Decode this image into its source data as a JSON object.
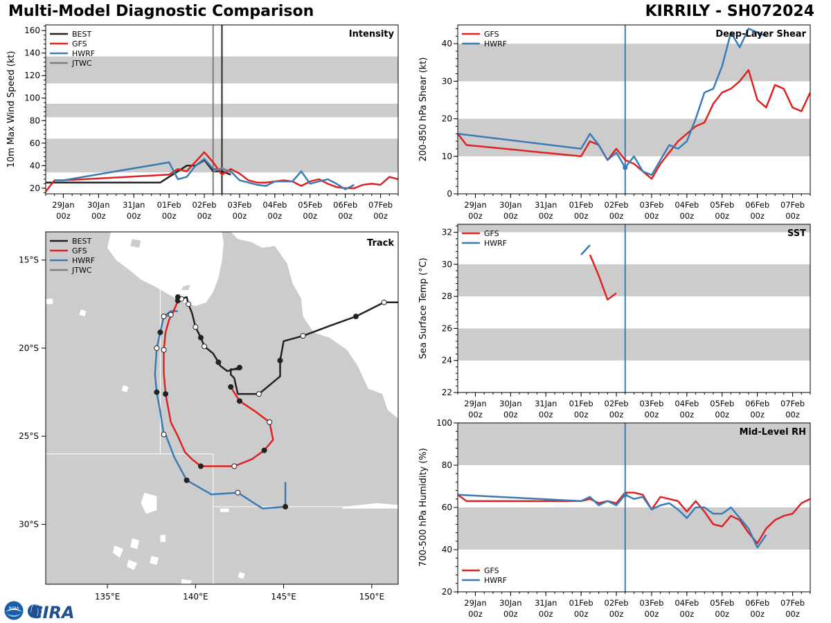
{
  "header": {
    "left_title": "Multi-Model Diagnostic Comparison",
    "right_title": "KIRRILY - SH072024"
  },
  "logo": {
    "text": "CIRA",
    "noaa_text": "NOAA"
  },
  "colors": {
    "BEST": "#222222",
    "GFS": "#dd2222",
    "HWRF": "#3a7bb5",
    "JTWC": "#808080",
    "band": "#cccccc",
    "land": "#cccccc"
  },
  "time_ticks": [
    "29Jan 00z",
    "30Jan 00z",
    "31Jan 00z",
    "01Feb 00z",
    "02Feb 00z",
    "03Feb 00z",
    "04Feb 00z",
    "05Feb 00z",
    "06Feb 00z",
    "07Feb 00z"
  ],
  "chart_data": [
    {
      "id": "intensity",
      "type": "line",
      "title": "Intensity",
      "ylabel": "10m Max Wind Speed (kt)",
      "xlim": [
        -0.5,
        9.5
      ],
      "ylim": [
        15,
        165
      ],
      "yticks": [
        20,
        40,
        60,
        80,
        100,
        120,
        140,
        160
      ],
      "bands": [
        [
          34,
          64
        ],
        [
          83,
          95
        ],
        [
          113,
          137
        ]
      ],
      "vlines": [
        {
          "x": 4.25,
          "color": "#808080"
        },
        {
          "x": 4.5,
          "color": "#222222"
        }
      ],
      "legend": [
        "BEST",
        "GFS",
        "HWRF",
        "JTWC"
      ],
      "series": [
        {
          "name": "BEST",
          "x": [
            -0.5,
            2.75,
            3.0,
            3.25,
            3.5,
            3.75,
            4.0,
            4.25,
            4.5,
            4.75
          ],
          "y": [
            25,
            25,
            30,
            35,
            40,
            40,
            45,
            35,
            35,
            32
          ]
        },
        {
          "name": "GFS",
          "x": [
            -0.5,
            -0.25,
            0.0,
            3.0,
            3.25,
            3.5,
            4.0,
            4.25,
            4.5,
            4.75,
            5.0,
            5.25,
            5.5,
            5.75,
            6.0,
            6.25,
            6.5,
            6.75,
            7.0,
            7.25,
            7.5,
            7.75,
            8.0,
            8.25,
            8.5,
            8.75,
            9.0,
            9.25,
            9.5
          ],
          "y": [
            17,
            27,
            27,
            32,
            37,
            35,
            52,
            43,
            32,
            37,
            33,
            27,
            25,
            25,
            26,
            27,
            26,
            22,
            26,
            28,
            24,
            21,
            20,
            20,
            23,
            24,
            23,
            30,
            28
          ]
        },
        {
          "name": "HWRF",
          "x": [
            -0.25,
            0.0,
            3.0,
            3.25,
            3.5,
            3.75,
            4.0,
            4.25,
            4.5,
            4.75,
            5.0,
            5.25,
            5.5,
            5.75,
            6.0,
            6.25,
            6.5,
            6.75,
            7.0,
            7.25,
            7.5,
            7.75,
            8.0,
            8.25
          ],
          "y": [
            27,
            27,
            43,
            28,
            30,
            40,
            46,
            37,
            37,
            35,
            27,
            25,
            23,
            22,
            26,
            26,
            26,
            35,
            24,
            26,
            28,
            24,
            19,
            23
          ]
        },
        {
          "name": "JTWC",
          "x": [
            4.25,
            4.5,
            4.75
          ],
          "y": [
            35,
            38,
            34
          ]
        }
      ]
    },
    {
      "id": "shear",
      "type": "line",
      "title": "Deep-Layer Shear",
      "ylabel": "200-850 hPa Shear (kt)",
      "xlim": [
        -0.5,
        9.5
      ],
      "ylim": [
        0,
        45
      ],
      "yticks": [
        0,
        10,
        20,
        30,
        40
      ],
      "bands": [
        [
          10,
          20
        ],
        [
          30,
          40
        ]
      ],
      "vlines": [
        {
          "x": 4.25,
          "color": "#3a7bb5"
        }
      ],
      "legend": [
        "GFS",
        "HWRF"
      ],
      "series": [
        {
          "name": "GFS",
          "x": [
            -0.5,
            -0.25,
            3.0,
            3.25,
            3.5,
            3.75,
            4.0,
            4.25,
            4.5,
            4.75,
            5.0,
            5.25,
            5.5,
            5.75,
            6.0,
            6.25,
            6.5,
            6.75,
            7.0,
            7.25,
            7.5,
            7.75,
            8.0,
            8.25,
            8.5,
            8.75,
            9.0,
            9.25,
            9.5
          ],
          "y": [
            16,
            13,
            10,
            14,
            13,
            9,
            12,
            9,
            8,
            6,
            4,
            8,
            11,
            14,
            16,
            18,
            19,
            24,
            27,
            28,
            30,
            33,
            25,
            23,
            29,
            28,
            23,
            22,
            27
          ]
        },
        {
          "name": "HWRF",
          "x": [
            -0.5,
            3.0,
            3.25,
            3.5,
            3.75,
            4.0,
            4.25,
            4.5,
            4.75,
            5.0,
            5.25,
            5.5,
            5.75,
            6.0,
            6.25,
            6.5,
            6.75,
            7.0,
            7.25,
            7.5,
            7.75,
            8.0,
            8.25
          ],
          "y": [
            16,
            12,
            16,
            13,
            9,
            11,
            7,
            10,
            6,
            5,
            9,
            13,
            12,
            14,
            20,
            27,
            28,
            34,
            43,
            39,
            44,
            43,
            42
          ]
        }
      ]
    },
    {
      "id": "sst",
      "type": "line",
      "title": "SST",
      "ylabel": "Sea Surface Temp (°C)",
      "xlim": [
        -0.5,
        9.5
      ],
      "ylim": [
        22,
        32.5
      ],
      "yticks": [
        22,
        24,
        26,
        28,
        30,
        32
      ],
      "bands": [
        [
          24,
          26
        ],
        [
          28,
          30
        ],
        [
          32,
          33
        ]
      ],
      "vlines": [
        {
          "x": 4.25,
          "color": "#3a7bb5"
        }
      ],
      "legend": [
        "GFS",
        "HWRF"
      ],
      "series": [
        {
          "name": "GFS",
          "x": [
            3.25,
            3.5,
            3.75,
            4.0
          ],
          "y": [
            30.6,
            29.3,
            27.8,
            28.2
          ]
        },
        {
          "name": "HWRF",
          "x": [
            3.0,
            3.25
          ],
          "y": [
            30.6,
            31.2
          ]
        }
      ]
    },
    {
      "id": "rh",
      "type": "line",
      "title": "Mid-Level RH",
      "ylabel": "700-500 hPa Humidity (%)",
      "xlim": [
        -0.5,
        9.5
      ],
      "ylim": [
        20,
        100
      ],
      "yticks": [
        20,
        40,
        60,
        80,
        100
      ],
      "bands": [
        [
          40,
          60
        ],
        [
          80,
          100
        ]
      ],
      "vlines": [
        {
          "x": 4.25,
          "color": "#3a7bb5"
        }
      ],
      "legend": [
        "GFS",
        "HWRF"
      ],
      "series": [
        {
          "name": "GFS",
          "x": [
            -0.5,
            -0.25,
            3.0,
            3.25,
            3.5,
            3.75,
            4.0,
            4.25,
            4.5,
            4.75,
            5.0,
            5.25,
            5.5,
            5.75,
            6.0,
            6.25,
            6.5,
            6.75,
            7.0,
            7.25,
            7.5,
            7.75,
            8.0,
            8.25,
            8.5,
            8.75,
            9.0,
            9.25,
            9.5
          ],
          "y": [
            66,
            63,
            63,
            64,
            62,
            63,
            62,
            67,
            67,
            66,
            59,
            65,
            64,
            63,
            58,
            63,
            58,
            52,
            51,
            56,
            54,
            48,
            43,
            50,
            54,
            56,
            57,
            62,
            64
          ]
        },
        {
          "name": "HWRF",
          "x": [
            -0.5,
            3.0,
            3.25,
            3.5,
            3.75,
            4.0,
            4.25,
            4.5,
            4.75,
            5.0,
            5.25,
            5.5,
            5.75,
            6.0,
            6.25,
            6.5,
            6.75,
            7.0,
            7.25,
            7.5,
            7.75,
            8.0,
            8.25
          ],
          "y": [
            66,
            63,
            65,
            61,
            63,
            61,
            66,
            64,
            65,
            59,
            61,
            62,
            59,
            55,
            60,
            60,
            57,
            57,
            60,
            55,
            50,
            41,
            47
          ]
        }
      ]
    },
    {
      "id": "track",
      "type": "map",
      "title": "Track",
      "lon_range": [
        131.5,
        151.5
      ],
      "lat_range": [
        -33.4,
        -13.4
      ],
      "xticks": [
        {
          "v": 135,
          "label": "135°E"
        },
        {
          "v": 140,
          "label": "140°E"
        },
        {
          "v": 145,
          "label": "145°E"
        },
        {
          "v": 150,
          "label": "150°E"
        }
      ],
      "yticks": [
        {
          "v": -15,
          "label": "15°S"
        },
        {
          "v": -20,
          "label": "20°S"
        },
        {
          "v": -25,
          "label": "25°S"
        },
        {
          "v": -30,
          "label": "30°S"
        }
      ],
      "legend": [
        "BEST",
        "GFS",
        "HWRF",
        "JTWC"
      ],
      "tracks": [
        {
          "name": "BEST",
          "lon": [
            151.5,
            150.7,
            149.1,
            147.7,
            146.1,
            145.0,
            144.8,
            144.8,
            143.6,
            142.4,
            142.2,
            142.0,
            142.0,
            142.5,
            142.5,
            141.8,
            141.4,
            141.3,
            141.0,
            140.5,
            140.3,
            140.0,
            139.8,
            139.6,
            139.5,
            139.2,
            139.0
          ],
          "lat": [
            -17.4,
            -17.4,
            -18.2,
            -18.7,
            -19.3,
            -19.6,
            -20.7,
            -21.6,
            -22.6,
            -22.6,
            -21.7,
            -21.5,
            -21.2,
            -21.2,
            -21.1,
            -21.3,
            -21.0,
            -20.8,
            -20.3,
            -19.9,
            -19.4,
            -18.8,
            -18.0,
            -17.5,
            -17.1,
            -17.2,
            -17.1
          ],
          "markers": [
            {
              "i": 1,
              "f": 0
            },
            {
              "i": 2,
              "f": 1
            },
            {
              "i": 4,
              "f": 0
            },
            {
              "i": 6,
              "f": 1
            },
            {
              "i": 8,
              "f": 0
            },
            {
              "i": 14,
              "f": 1
            },
            {
              "i": 17,
              "f": 1
            },
            {
              "i": 19,
              "f": 0
            },
            {
              "i": 20,
              "f": 1
            },
            {
              "i": 21,
              "f": 0
            },
            {
              "i": 23,
              "f": 0
            },
            {
              "i": 25,
              "f": 0
            },
            {
              "i": 26,
              "f": 1
            }
          ]
        },
        {
          "name": "GFS",
          "lon": [
            139.0,
            138.8,
            138.5,
            138.3,
            138.2,
            138.2,
            138.3,
            138.6,
            139.0,
            139.4,
            139.8,
            140.3,
            141.2,
            142.2,
            143.2,
            143.9,
            144.4,
            144.2,
            143.4,
            142.5,
            142.0
          ],
          "lat": [
            -17.3,
            -17.8,
            -18.4,
            -19.1,
            -20.1,
            -21.4,
            -22.6,
            -24.2,
            -25.0,
            -25.9,
            -26.3,
            -26.7,
            -26.7,
            -26.7,
            -26.3,
            -25.8,
            -25.2,
            -24.2,
            -23.6,
            -23.0,
            -22.2
          ],
          "markers": [
            {
              "i": 0,
              "f": 1
            },
            {
              "i": 4,
              "f": 0
            },
            {
              "i": 6,
              "f": 1
            },
            {
              "i": 11,
              "f": 1
            },
            {
              "i": 13,
              "f": 0
            },
            {
              "i": 15,
              "f": 1
            },
            {
              "i": 17,
              "f": 0
            },
            {
              "i": 19,
              "f": 1
            },
            {
              "i": 20,
              "f": 1
            }
          ]
        },
        {
          "name": "HWRF",
          "lon": [
            139.0,
            138.6,
            138.2,
            138.0,
            137.8,
            137.7,
            137.8,
            138.0,
            138.2,
            138.3,
            138.8,
            139.5,
            140.9,
            142.4,
            143.8,
            145.1,
            145.1
          ],
          "lat": [
            -17.9,
            -17.9,
            -18.2,
            -19.1,
            -20.0,
            -21.5,
            -22.5,
            -23.6,
            -24.9,
            -24.9,
            -26.2,
            -27.5,
            -28.3,
            -28.2,
            -29.1,
            -29.0,
            -27.6
          ],
          "markers": [
            {
              "i": 2,
              "f": 0
            },
            {
              "i": 3,
              "f": 1
            },
            {
              "i": 4,
              "f": 0
            },
            {
              "i": 6,
              "f": 1
            },
            {
              "i": 8,
              "f": 0
            },
            {
              "i": 11,
              "f": 1
            },
            {
              "i": 13,
              "f": 0
            },
            {
              "i": 15,
              "f": 1
            }
          ]
        },
        {
          "name": "JTWC",
          "lon": [
            138.6,
            138.3
          ],
          "lat": [
            -18.1,
            -18.2
          ],
          "markers": [
            {
              "i": 0,
              "f": 0
            }
          ]
        }
      ]
    }
  ]
}
